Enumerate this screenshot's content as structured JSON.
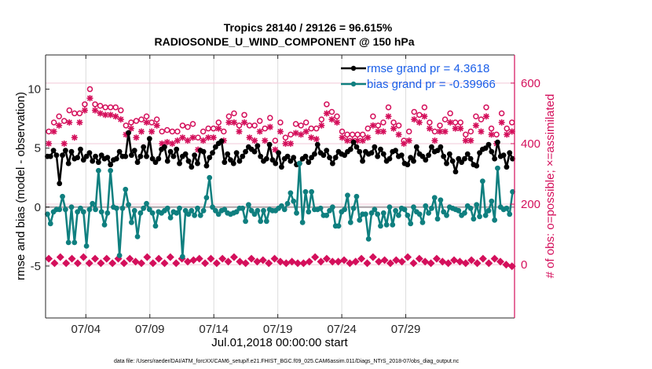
{
  "chart_data": {
    "type": "line",
    "title": "Tropics 28140 / 29126 = 96.615%",
    "subtitle": "RADIOSONDE_U_WIND_COMPONENT @ 150 hPa",
    "xlabel": "Jul.01,2018 00:00:00 start",
    "ylabel": "rmse and bias (model - observation)",
    "y2label": "# of obs: o=possible; ×=assimilated",
    "footer": "data file: /Users/raeder/DAI/ATM_forcXX/CAM6_setup/f.e21.FHIST_BGC.f09_025.CAM6assim.011/Diags_NTrS_2018-07/obs_diag_output.nc",
    "xlim_days": [
      -0.15,
      36.5
    ],
    "ylim": [
      -9.4,
      12.9
    ],
    "y2lim": [
      -176,
      693
    ],
    "grid": true,
    "x_ticks": [
      {
        "day": 3,
        "label": "07/04"
      },
      {
        "day": 8,
        "label": "07/09"
      },
      {
        "day": 13,
        "label": "07/14"
      },
      {
        "day": 18,
        "label": "07/19"
      },
      {
        "day": 23,
        "label": "07/24"
      },
      {
        "day": 28,
        "label": "07/29"
      }
    ],
    "y_ticks": [
      {
        "value": -5,
        "label": "-5"
      },
      {
        "value": 0,
        "label": "0"
      },
      {
        "value": 5,
        "label": "5"
      },
      {
        "value": 10,
        "label": "10"
      }
    ],
    "y2_ticks": [
      {
        "value": 0,
        "label": "0"
      },
      {
        "value": 200,
        "label": "200"
      },
      {
        "value": 400,
        "label": "400"
      },
      {
        "value": 600,
        "label": "600"
      }
    ],
    "legend_position": "top-right",
    "x_step_days": 0.25,
    "x_start_day": 0,
    "series": [
      {
        "name": "rmse grand pr = 4.3618",
        "color": "#000000",
        "axis": "left",
        "values": [
          4.3,
          4.3,
          4.8,
          4.4,
          2.0,
          4.4,
          4.8,
          3.7,
          4.7,
          4.1,
          4.2,
          4.9,
          4.0,
          4.3,
          4.6,
          3.9,
          4.3,
          3.8,
          4.4,
          4.1,
          4.2,
          3.6,
          4.0,
          4.1,
          4.7,
          4.3,
          4.3,
          6.3,
          4.4,
          4.8,
          3.8,
          4.3,
          5.1,
          4.3,
          5.8,
          4.1,
          3.8,
          4.1,
          4.9,
          5.1,
          3.9,
          4.7,
          4.3,
          4.9,
          3.7,
          4.3,
          4.5,
          3.9,
          3.4,
          4.4,
          3.7,
          4.8,
          4.7,
          3.5,
          4.2,
          4.6,
          5.1,
          5.4,
          5.6,
          3.8,
          4.5,
          4.0,
          3.7,
          4.6,
          3.9,
          4.3,
          4.7,
          5.1,
          4.9,
          4.7,
          5.2,
          4.3,
          3.9,
          4.1,
          5.3,
          4.0,
          3.7,
          4.6,
          3.4,
          4.1,
          4.3,
          3.9,
          4.2,
          3.6,
          3.7,
          4.1,
          4.3,
          3.8,
          4.2,
          4.5,
          5.3,
          4.6,
          4.4,
          4.8,
          4.2,
          3.7,
          4.2,
          4.7,
          4.5,
          4.4,
          4.7,
          4.9,
          5.5,
          5.1,
          4.7,
          3.9,
          4.7,
          4.5,
          4.6,
          5.1,
          4.3,
          4.9,
          4.5,
          3.9,
          4.1,
          4.7,
          4.8,
          4.3,
          4.4,
          3.7,
          3.6,
          4.2,
          3.9,
          5.1,
          4.5,
          4.3,
          4.0,
          4.4,
          5.1,
          4.7,
          4.8,
          5.1,
          4.3,
          3.7,
          4.5,
          3.9,
          3.0,
          4.1,
          3.8,
          4.1,
          4.5,
          4.1,
          3.6,
          3.5,
          4.6,
          4.9,
          5.0,
          5.3,
          4.7,
          4.1,
          5.5,
          4.3,
          4.4,
          3.4,
          4.6,
          4.1
        ]
      },
      {
        "name": "bias grand pr = -0.39966",
        "color": "#0f7f7f",
        "axis": "left",
        "values": [
          -0.6,
          -1.4,
          -0.4,
          -0.2,
          -0.2,
          0.9,
          -0.2,
          -3.0,
          0.0,
          -3.0,
          -0.4,
          -0.1,
          -0.4,
          -3.3,
          -0.2,
          0.3,
          -0.2,
          3.1,
          -0.4,
          -1.5,
          -0.5,
          3.1,
          0.0,
          -0.1,
          -4.1,
          -0.1,
          1.5,
          0.2,
          -1.3,
          -0.3,
          -2.5,
          -0.5,
          -0.1,
          0.3,
          -0.2,
          -0.5,
          -1.6,
          -0.4,
          -0.5,
          -0.3,
          -0.1,
          -0.9,
          -0.4,
          -0.5,
          -0.1,
          -4.2,
          -0.3,
          -0.6,
          -0.3,
          -0.7,
          -0.1,
          -0.7,
          -0.3,
          0.8,
          2.5,
          0.0,
          -0.3,
          -0.6,
          -0.3,
          -0.2,
          -0.5,
          -0.6,
          -0.5,
          -0.4,
          -0.1,
          -0.1,
          -1.2,
          0.2,
          -0.3,
          -0.6,
          -0.3,
          -1.2,
          -0.3,
          -1.2,
          -0.2,
          -0.3,
          -0.3,
          -0.1,
          0.1,
          -0.2,
          0.3,
          1.2,
          0.5,
          -0.5,
          3.7,
          -1.3,
          1.3,
          -0.4,
          1.3,
          -0.2,
          -0.2,
          -0.1,
          -0.7,
          -0.7,
          -0.3,
          0.0,
          -1.6,
          -1.6,
          -0.4,
          -0.2,
          1.0,
          -1.3,
          -0.1,
          0.9,
          -1.1,
          -0.6,
          -0.6,
          -2.7,
          -0.5,
          -0.2,
          -0.6,
          -1.6,
          -0.5,
          -1.5,
          0.0,
          -1.5,
          -0.3,
          -0.7,
          -0.1,
          -0.2,
          -0.7,
          -1.4,
          0.0,
          -0.4,
          -0.6,
          -1.3,
          0.1,
          -0.5,
          -0.1,
          0.8,
          -1.0,
          0.6,
          -0.4,
          -0.7,
          0.0,
          -0.1,
          -0.2,
          -0.3,
          -0.7,
          -0.5,
          0.1,
          -0.1,
          -1.0,
          0.2,
          -0.8,
          2.2,
          -0.7,
          -0.3,
          0.5,
          -1.1,
          3.3,
          0.0,
          -0.2,
          -0.1,
          -0.6,
          1.3
        ]
      },
      {
        "name": "possible (o)",
        "color": "#d40f5b",
        "axis": "right",
        "marker": "o",
        "values": [
          440,
          470,
          490,
          475,
          510,
          500,
          500,
          530,
          580,
          530,
          525,
          520,
          520,
          520,
          510,
          460,
          470,
          475,
          480,
          490,
          470,
          480,
          440,
          445,
          440,
          440,
          460,
          455,
          465,
          420,
          440,
          450,
          450,
          470,
          440,
          490,
          500,
          460,
          495,
          460,
          460,
          475,
          450,
          485,
          410,
          470,
          420,
          430,
          465,
          460,
          470,
          450,
          450,
          480,
          530,
          505,
          490,
          440,
          430,
          430,
          430,
          430,
          450,
          490,
          460,
          470,
          520,
          470,
          460,
          410,
          440,
          505,
          495,
          520,
          470,
          440,
          460,
          480,
          500,
          470,
          470,
          430,
          440,
          490,
          480,
          520,
          450,
          430,
          500,
          450,
          470
        ]
      },
      {
        "name": "assimilated (*)",
        "color": "#d40f5b",
        "axis": "right",
        "marker": "*",
        "values": [
          400,
          440,
          460,
          400,
          470,
          420,
          470,
          510,
          550,
          510,
          500,
          495,
          495,
          490,
          480,
          430,
          450,
          420,
          440,
          470,
          440,
          460,
          400,
          405,
          400,
          410,
          420,
          410,
          420,
          380,
          410,
          420,
          420,
          450,
          410,
          470,
          470,
          440,
          470,
          420,
          410,
          440,
          410,
          455,
          380,
          440,
          400,
          400,
          435,
          430,
          440,
          420,
          415,
          460,
          500,
          480,
          470,
          420,
          410,
          410,
          410,
          410,
          420,
          460,
          440,
          440,
          490,
          450,
          430,
          400,
          410,
          480,
          470,
          490,
          450,
          410,
          440,
          440,
          470,
          450,
          450,
          410,
          410,
          460,
          440,
          490,
          430,
          400,
          470,
          430,
          440
        ]
      },
      {
        "name": "count (diamond)",
        "color": "#d40f5b",
        "axis": "right",
        "marker": "diamond",
        "values": [
          20,
          5,
          25,
          5,
          20,
          5,
          25,
          5,
          20,
          5,
          20,
          5,
          20,
          5,
          20,
          10,
          5,
          25,
          5,
          20,
          5,
          25,
          5,
          20,
          10,
          15,
          20,
          5,
          20,
          5,
          20,
          10,
          25,
          10,
          5,
          20,
          10,
          15,
          5,
          20,
          10,
          5,
          10,
          5,
          5,
          10,
          25,
          10,
          20,
          10,
          10,
          15,
          5,
          10,
          20,
          5,
          25,
          10,
          15,
          5,
          15,
          10,
          25,
          5,
          20,
          10,
          5,
          20,
          10,
          5,
          15,
          10,
          5,
          15,
          5,
          20,
          5,
          20,
          10,
          0,
          -5
        ]
      }
    ]
  },
  "legend": {
    "rmse_label": "rmse grand pr = 4.3618",
    "bias_label": "bias grand pr = -0.39966"
  }
}
